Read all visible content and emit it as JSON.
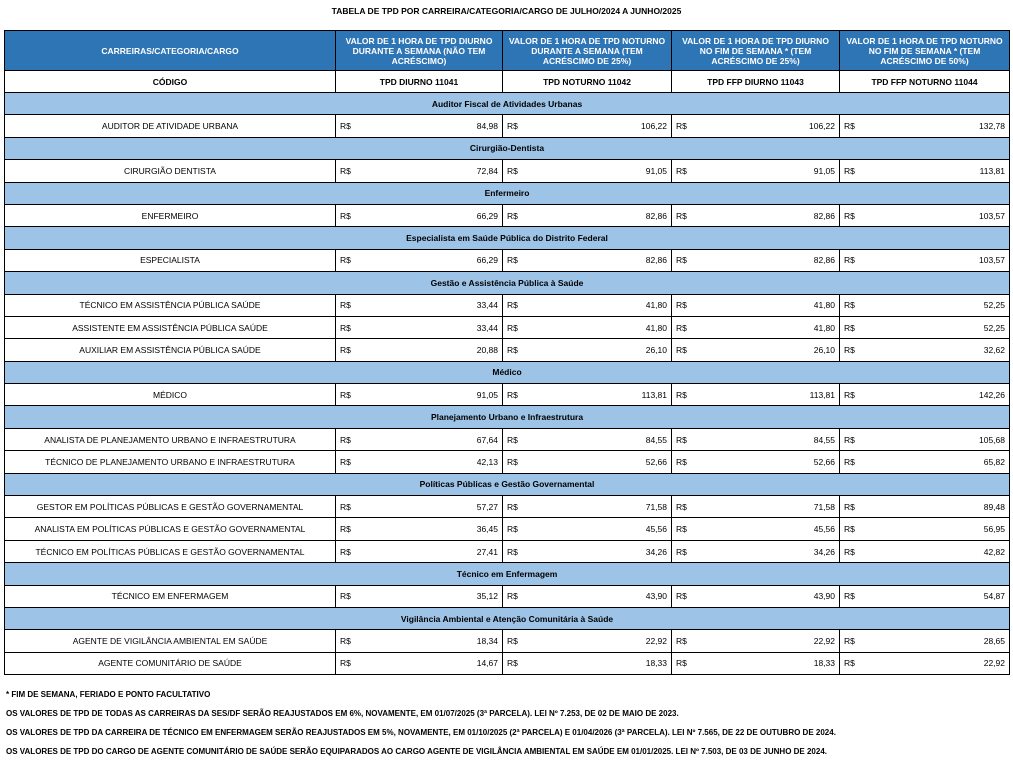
{
  "title": "TABELA DE TPD POR CARREIRA/CATEGORIA/CARGO DE JULHO/2024 A JUNHO/2025",
  "header": {
    "first": "CARREIRAS/CATEGORIA/CARGO",
    "columns": [
      "VALOR DE 1 HORA DE TPD DIURNO DURANTE A SEMANA (NÃO TEM ACRÉSCIMO)",
      "VALOR DE 1 HORA DE TPD NOTURNO DURANTE A SEMANA (TEM ACRÉSCIMO DE 25%)",
      "VALOR DE 1 HORA DE TPD DIURNO NO FIM DE SEMANA * (TEM ACRÉSCIMO DE 25%)",
      "VALOR DE 1 HORA DE TPD NOTURNO NO FIM DE SEMANA * (TEM ACRÉSCIMO DE 50%)"
    ],
    "code_label": "CÓDIGO",
    "codes": [
      "TPD DIURNO 11041",
      "TPD NOTURNO 11042",
      "TPD FFP DIURNO 11043",
      "TPD FFP NOTURNO 11044"
    ]
  },
  "currency": "R$",
  "sections": [
    {
      "name": "Auditor Fiscal de Atividades Urbanas",
      "rows": [
        {
          "label": "AUDITOR DE ATIVIDADE URBANA",
          "values": [
            "84,98",
            "106,22",
            "106,22",
            "132,78"
          ]
        }
      ]
    },
    {
      "name": "Cirurgião-Dentista",
      "rows": [
        {
          "label": "CIRURGIÃO DENTISTA",
          "values": [
            "72,84",
            "91,05",
            "91,05",
            "113,81"
          ]
        }
      ]
    },
    {
      "name": "Enfermeiro",
      "rows": [
        {
          "label": "ENFERMEIRO",
          "values": [
            "66,29",
            "82,86",
            "82,86",
            "103,57"
          ]
        }
      ]
    },
    {
      "name": "Especialista em Saúde Pública do Distrito Federal",
      "rows": [
        {
          "label": "ESPECIALISTA",
          "values": [
            "66,29",
            "82,86",
            "82,86",
            "103,57"
          ]
        }
      ]
    },
    {
      "name": "Gestão e Assistência Pública à Saúde",
      "rows": [
        {
          "label": "TÉCNICO EM ASSISTÊNCIA PÚBLICA SAÚDE",
          "values": [
            "33,44",
            "41,80",
            "41,80",
            "52,25"
          ]
        },
        {
          "label": "ASSISTENTE EM ASSISTÊNCIA PÚBLICA SAÚDE",
          "values": [
            "33,44",
            "41,80",
            "41,80",
            "52,25"
          ]
        },
        {
          "label": "AUXILIAR EM ASSISTÊNCIA PÚBLICA SAÚDE",
          "values": [
            "20,88",
            "26,10",
            "26,10",
            "32,62"
          ]
        }
      ]
    },
    {
      "name": "Médico",
      "rows": [
        {
          "label": "MÉDICO",
          "values": [
            "91,05",
            "113,81",
            "113,81",
            "142,26"
          ]
        }
      ]
    },
    {
      "name": "Planejamento Urbano e Infraestrutura",
      "rows": [
        {
          "label": "ANALISTA DE PLANEJAMENTO URBANO E INFRAESTRUTURA",
          "values": [
            "67,64",
            "84,55",
            "84,55",
            "105,68"
          ]
        },
        {
          "label": "TÉCNICO DE PLANEJAMENTO URBANO E INFRAESTRUTURA",
          "values": [
            "42,13",
            "52,66",
            "52,66",
            "65,82"
          ]
        }
      ]
    },
    {
      "name": "Políticas Públicas e Gestão Governamental",
      "rows": [
        {
          "label": "GESTOR EM POLÍTICAS PÚBLICAS E GESTÃO GOVERNAMENTAL",
          "values": [
            "57,27",
            "71,58",
            "71,58",
            "89,48"
          ]
        },
        {
          "label": "ANALISTA EM POLÍTICAS PÚBLICAS E GESTÃO GOVERNAMENTAL",
          "values": [
            "36,45",
            "45,56",
            "45,56",
            "56,95"
          ]
        },
        {
          "label": "TÉCNICO EM POLÍTICAS PÚBLICAS E GESTÃO GOVERNAMENTAL",
          "values": [
            "27,41",
            "34,26",
            "34,26",
            "42,82"
          ]
        }
      ]
    },
    {
      "name": "Técnico em Enfermagem",
      "rows": [
        {
          "label": "TÉCNICO EM ENFERMAGEM",
          "values": [
            "35,12",
            "43,90",
            "43,90",
            "54,87"
          ]
        }
      ]
    },
    {
      "name": "Vigilância Ambiental e Atenção Comunitária à Saúde",
      "rows": [
        {
          "label": "AGENTE DE VIGILÂNCIA AMBIENTAL EM SAÚDE",
          "values": [
            "18,34",
            "22,92",
            "22,92",
            "28,65"
          ]
        },
        {
          "label": "AGENTE COMUNITÁRIO DE SAÚDE",
          "values": [
            "14,67",
            "18,33",
            "18,33",
            "22,92"
          ]
        }
      ]
    }
  ],
  "notes": [
    "* FIM DE SEMANA, FERIADO E PONTO FACULTATIVO",
    "OS VALORES DE TPD DE TODAS AS CARREIRAS DA SES/DF SERÃO REAJUSTADOS EM 6%, NOVAMENTE, EM 01/07/2025 (3ª PARCELA). LEI Nº 7.253, DE 02 DE MAIO DE 2023.",
    "OS VALORES DE TPD DA CARREIRA DE TÉCNICO EM ENFERMAGEM SERÃO REAJUSTADOS EM 5%, NOVAMENTE, EM 01/10/2025 (2ª PARCELA) E 01/04/2026 (3ª PARCELA). LEI Nº 7.565, DE 22 DE OUTUBRO DE 2024.",
    "OS VALORES DE TPD DO CARGO DE AGENTE COMUNITÁRIO DE SAÚDE SERÃO EQUIPARADOS AO CARGO AGENTE DE VIGILÂNCIA AMBIENTAL EM SAÚDE EM 01/01/2025. LEI Nº 7.503, DE 03 DE JUNHO DE 2024."
  ]
}
